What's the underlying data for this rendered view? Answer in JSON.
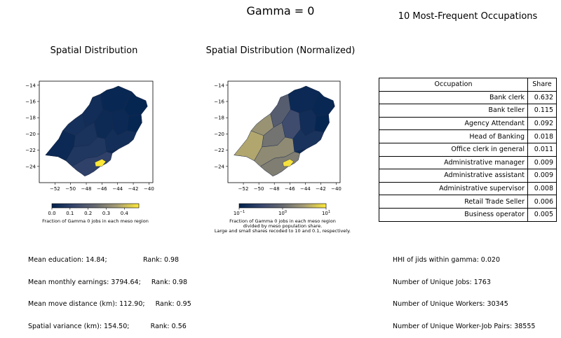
{
  "figure": {
    "title": "Gamma = 0",
    "left_title": "Spatial Distribution",
    "middle_title": "Spatial Distribution (Normalized)",
    "right_title": "10 Most-Frequent Occupations"
  },
  "chart_data": [
    {
      "type": "heatmap",
      "title": "Spatial Distribution",
      "x_ticks": [
        -52,
        -50,
        -48,
        -46,
        -44,
        -42,
        -40
      ],
      "y_ticks": [
        -14,
        -16,
        -18,
        -20,
        -22,
        -24
      ],
      "xlim": [
        -54,
        -39.5
      ],
      "ylim": [
        -26,
        -13.5
      ],
      "colormap": "cividis",
      "colorbar": {
        "ticks": [
          "0.0",
          "0.1",
          "0.2",
          "0.3",
          "0.4"
        ],
        "range": [
          0,
          0.48
        ],
        "label": "Fraction of Gamma 0 jobs in each meso region"
      },
      "notable_region_value": 0.47
    },
    {
      "type": "heatmap",
      "title": "Spatial Distribution (Normalized)",
      "x_ticks": [
        -52,
        -50,
        -48,
        -46,
        -44,
        -42,
        -40
      ],
      "y_ticks": [
        -14,
        -16,
        -18,
        -20,
        -22,
        -24
      ],
      "xlim": [
        -54,
        -39.5
      ],
      "ylim": [
        -26,
        -13.5
      ],
      "colormap": "cividis",
      "scale": "log",
      "colorbar": {
        "ticks": [
          "10",
          "10",
          "10"
        ],
        "tick_exponents": [
          "-1",
          "0",
          "1"
        ],
        "range": [
          0.1,
          10
        ],
        "label": "Fraction of Gamma 0 jobs in each meso region\ndivided by meso population share.\nLarge and small shares recoded to 10 and 0.1, respectively."
      }
    },
    {
      "type": "table",
      "title": "10 Most-Frequent Occupations",
      "columns": [
        "Occupation",
        "Share"
      ],
      "rows": [
        [
          "Bank clerk",
          "0.632"
        ],
        [
          "Bank teller",
          "0.115"
        ],
        [
          "Agency Attendant",
          "0.092"
        ],
        [
          "Head of Banking",
          "0.018"
        ],
        [
          "Office clerk in general",
          "0.011"
        ],
        [
          "Administrative manager",
          "0.009"
        ],
        [
          "Administrative assistant",
          "0.009"
        ],
        [
          "Administrative supervisor",
          "0.008"
        ],
        [
          "Retail Trade Seller",
          "0.006"
        ],
        [
          "Business operator",
          "0.005"
        ]
      ]
    }
  ],
  "stats_left": [
    "Mean education: 14.84;                 Rank: 0.98",
    "Mean monthly earnings: 3794.64;     Rank: 0.98",
    "Mean move distance (km): 112.90;     Rank: 0.95",
    "Spatial variance (km): 154.50;          Rank: 0.56"
  ],
  "stats_right": [
    "HHI of jids within gamma: 0.020",
    "Number of Unique Jobs: 1763",
    "Number of Unique Workers: 30345",
    "Number of Unique Worker-Job Pairs: 38555"
  ]
}
